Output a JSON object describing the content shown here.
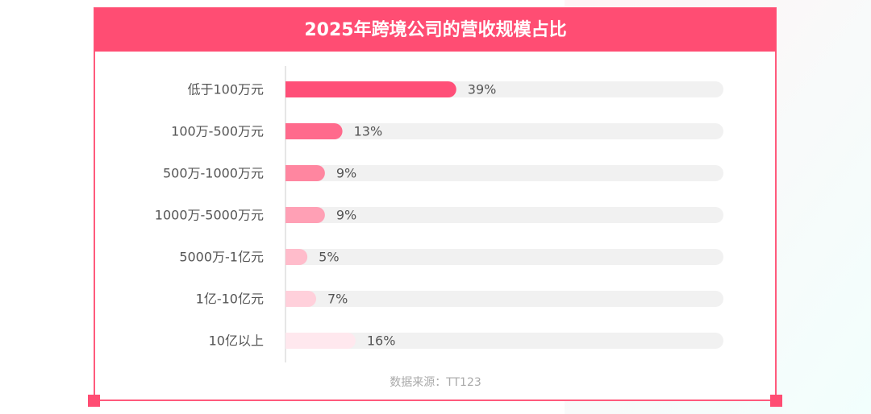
{
  "chart_data": {
    "type": "bar",
    "orientation": "horizontal",
    "title": "2025年跨境公司的营收规模占比",
    "categories": [
      "低于100万元",
      "100万-500万元",
      "500万-1000万元",
      "1000万-5000万元",
      "5000万-1亿元",
      "1亿-10亿元",
      "10亿以上"
    ],
    "values": [
      39,
      13,
      9,
      9,
      5,
      7,
      16
    ],
    "value_labels": [
      "39%",
      "13%",
      "9%",
      "9%",
      "5%",
      "7%",
      "16%"
    ],
    "colors": [
      "#ff4f78",
      "#ff6a8c",
      "#ff86a0",
      "#ffa0b5",
      "#ffbccb",
      "#ffd0db",
      "#ffe8ee"
    ],
    "xlim": [
      0,
      100
    ],
    "source": "数据来源：TT123"
  }
}
